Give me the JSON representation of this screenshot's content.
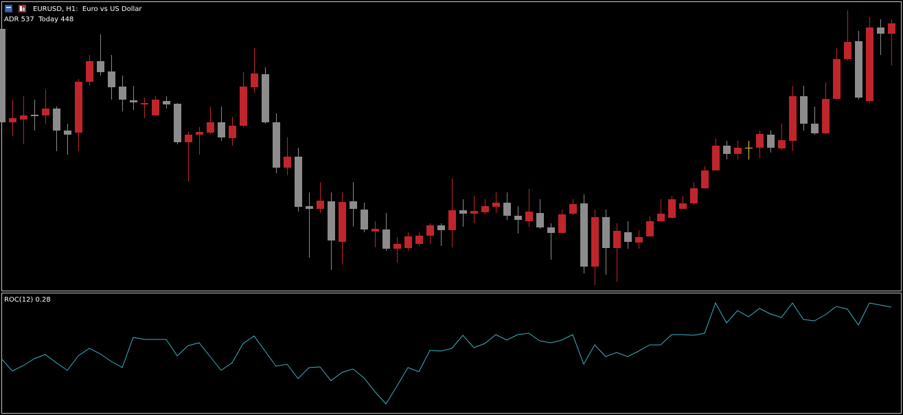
{
  "header": {
    "title": "EURUSD, H1:  Euro vs US Dollar",
    "info": "ADR 537  Today 448",
    "indicator": "ROC(12) 0.28"
  },
  "chart_data": [
    {
      "type": "candlestick",
      "up_color": "#c0252c",
      "down_color": "#8c8c8c",
      "doji_color": "#f0d020",
      "ylim": [
        7,
        426
      ],
      "ohlc": [
        [
          388,
          388,
          252,
          252
        ],
        [
          252,
          285,
          232,
          258
        ],
        [
          256,
          290,
          220,
          262
        ],
        [
          263,
          285,
          240,
          261
        ],
        [
          262,
          300,
          250,
          272
        ],
        [
          272,
          275,
          210,
          240
        ],
        [
          240,
          250,
          205,
          234
        ],
        [
          237,
          315,
          210,
          311
        ],
        [
          311,
          350,
          305,
          341
        ],
        [
          341,
          380,
          320,
          325
        ],
        [
          326,
          350,
          285,
          303
        ],
        [
          304,
          320,
          268,
          285
        ],
        [
          284,
          305,
          270,
          281
        ],
        [
          278,
          288,
          258,
          280
        ],
        [
          262,
          290,
          262,
          285
        ],
        [
          283,
          290,
          272,
          278
        ],
        [
          279,
          280,
          220,
          223
        ],
        [
          223,
          238,
          166,
          234
        ],
        [
          234,
          245,
          205,
          238
        ],
        [
          237,
          275,
          235,
          252
        ],
        [
          252,
          275,
          225,
          230
        ],
        [
          229,
          260,
          218,
          247
        ],
        [
          247,
          325,
          245,
          304
        ],
        [
          303,
          360,
          295,
          323
        ],
        [
          322,
          332,
          250,
          252
        ],
        [
          252,
          265,
          178,
          186
        ],
        [
          186,
          230,
          175,
          202
        ],
        [
          202,
          215,
          122,
          129
        ],
        [
          130,
          150,
          55,
          126
        ],
        [
          126,
          165,
          120,
          138
        ],
        [
          137,
          150,
          37,
          80
        ],
        [
          78,
          150,
          45,
          136
        ],
        [
          137,
          165,
          100,
          126
        ],
        [
          125,
          135,
          92,
          96
        ],
        [
          93,
          108,
          70,
          97
        ],
        [
          96,
          120,
          65,
          68
        ],
        [
          68,
          85,
          48,
          75
        ],
        [
          69,
          92,
          65,
          86
        ],
        [
          75,
          92,
          72,
          87
        ],
        [
          87,
          105,
          75,
          102
        ],
        [
          102,
          105,
          72,
          95
        ],
        [
          95,
          170,
          70,
          124
        ],
        [
          124,
          140,
          100,
          119
        ],
        [
          119,
          145,
          105,
          123
        ],
        [
          121,
          140,
          118,
          130
        ],
        [
          129,
          150,
          120,
          135
        ],
        [
          135,
          150,
          110,
          116
        ],
        [
          116,
          130,
          90,
          110
        ],
        [
          108,
          155,
          100,
          122
        ],
        [
          120,
          140,
          97,
          99
        ],
        [
          99,
          105,
          52,
          91
        ],
        [
          91,
          125,
          90,
          118
        ],
        [
          119,
          140,
          117,
          133
        ],
        [
          134,
          147,
          32,
          42
        ],
        [
          42,
          125,
          15,
          114
        ],
        [
          114,
          125,
          30,
          69
        ],
        [
          69,
          105,
          20,
          94
        ],
        [
          92,
          108,
          68,
          78
        ],
        [
          77,
          95,
          68,
          85
        ],
        [
          86,
          115,
          85,
          108
        ],
        [
          108,
          140,
          107,
          119
        ],
        [
          113,
          145,
          112,
          140
        ],
        [
          126,
          145,
          125,
          134
        ],
        [
          134,
          165,
          132,
          156
        ],
        [
          156,
          188,
          155,
          182
        ],
        [
          182,
          228,
          182,
          218
        ],
        [
          218,
          225,
          198,
          206
        ],
        [
          206,
          225,
          198,
          215
        ],
        [
          215,
          225,
          198,
          215
        ],
        [
          215,
          240,
          200,
          235
        ],
        [
          234,
          240,
          208,
          215
        ],
        [
          214,
          250,
          212,
          226
        ],
        [
          225,
          305,
          210,
          290
        ],
        [
          290,
          305,
          240,
          250
        ],
        [
          250,
          275,
          234,
          236
        ],
        [
          236,
          310,
          235,
          286
        ],
        [
          286,
          360,
          285,
          344
        ],
        [
          344,
          415,
          342,
          369
        ],
        [
          370,
          385,
          285,
          288
        ],
        [
          283,
          405,
          280,
          390
        ],
        [
          390,
          402,
          350,
          381
        ],
        [
          381,
          402,
          335,
          396
        ]
      ]
    },
    {
      "type": "line",
      "color": "#3bb4c4",
      "ylim": [
        0,
        172
      ],
      "values": [
        78,
        60,
        68,
        78,
        84,
        72,
        61,
        82,
        93,
        85,
        74,
        65,
        109,
        106,
        106,
        106,
        82,
        97,
        101,
        81,
        61,
        72,
        100,
        111,
        89,
        67,
        70,
        49,
        65,
        66,
        46,
        58,
        63,
        50,
        30,
        12,
        38,
        65,
        59,
        90,
        89,
        93,
        112,
        94,
        100,
        113,
        105,
        113,
        115,
        104,
        101,
        105,
        113,
        70,
        98,
        81,
        87,
        81,
        89,
        98,
        98,
        113,
        113,
        112,
        115,
        159,
        130,
        148,
        139,
        151,
        143,
        138,
        159,
        135,
        133,
        142,
        154,
        150,
        127,
        159,
        156,
        153
      ]
    }
  ]
}
